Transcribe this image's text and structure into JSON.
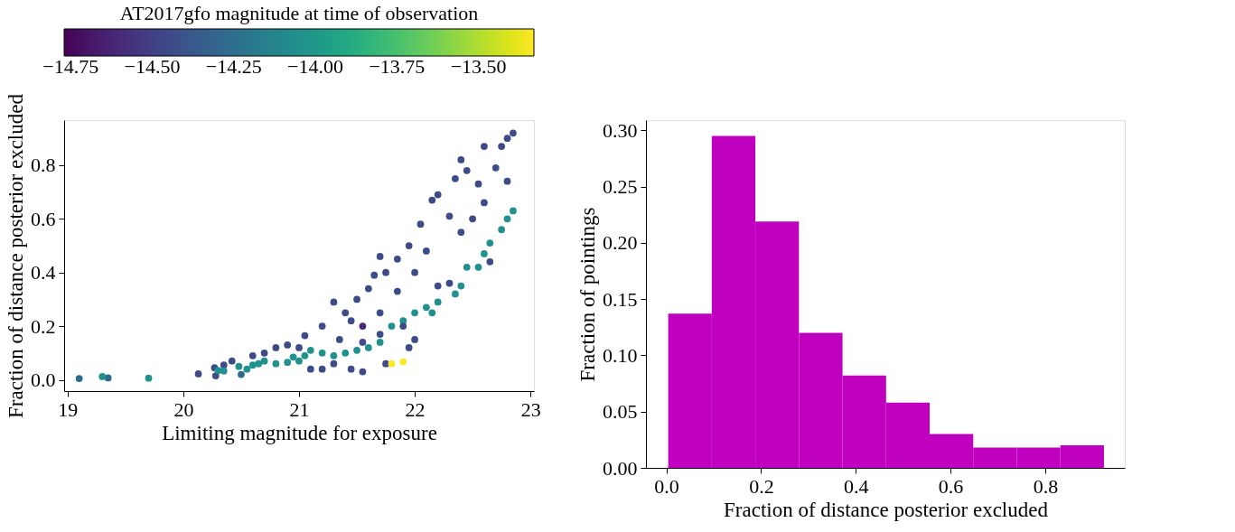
{
  "chart_data": [
    {
      "type": "scatter",
      "xlabel": "Limiting magnitude for exposure",
      "ylabel": "Fraction of distance posterior excluded",
      "clabel": "AT2017gfo magnitude at time of observation",
      "clim": [
        -14.77,
        -13.33
      ],
      "cticks": [
        {
          "value": -14.75,
          "label": "−14.75"
        },
        {
          "value": -14.5,
          "label": "−14.50"
        },
        {
          "value": -14.25,
          "label": "−14.25"
        },
        {
          "value": -14.0,
          "label": "−14.00"
        },
        {
          "value": -13.75,
          "label": "−13.75"
        },
        {
          "value": -13.5,
          "label": "−13.50"
        }
      ],
      "xlim": [
        18.97,
        23.03
      ],
      "ylim": [
        -0.042,
        0.968
      ],
      "xticks": [
        19,
        20,
        21,
        22,
        23
      ],
      "yticks": [
        {
          "value": 0,
          "label": "0.0"
        },
        {
          "value": 0.2,
          "label": "0.2"
        },
        {
          "value": 0.4,
          "label": "0.4"
        },
        {
          "value": 0.6,
          "label": "0.6"
        },
        {
          "value": 0.8,
          "label": "0.8"
        }
      ],
      "grid": false,
      "marker": "circle",
      "x": [
        19.1,
        19.35,
        19.3,
        19.7,
        20.13,
        20.28,
        20.27,
        20.35,
        20.42,
        20.3,
        20.35,
        20.5,
        20.48,
        20.55,
        20.6,
        20.65,
        20.7,
        20.8,
        20.9,
        20.6,
        20.7,
        20.8,
        20.9,
        21.0,
        21.05,
        20.95,
        21.0,
        21.05,
        21.1,
        21.2,
        21.3,
        21.4,
        21.5,
        21.6,
        21.7,
        21.8,
        21.9,
        22.0,
        22.1,
        22.15,
        22.2,
        22.35,
        22.4,
        22.45,
        22.55,
        22.6,
        22.65,
        22.75,
        22.8,
        22.85,
        21.1,
        21.2,
        21.3,
        21.45,
        21.55,
        21.75,
        21.8,
        21.9,
        21.3,
        21.4,
        21.5,
        21.55,
        21.6,
        21.65,
        21.7,
        21.75,
        21.85,
        21.95,
        22.05,
        22.1,
        22.15,
        22.2,
        22.3,
        22.35,
        22.4,
        22.45,
        22.5,
        22.55,
        22.6,
        22.7,
        22.75,
        22.8,
        22.85,
        22.8,
        22.65,
        22.3,
        22.0,
        21.95,
        21.9,
        21.2,
        21.35,
        21.45,
        21.7,
        21.85,
        22.0,
        22.2,
        22.4,
        22.6,
        21.55,
        21.7
      ],
      "values": [
        0.005,
        0.007,
        0.012,
        0.006,
        0.022,
        0.015,
        0.045,
        0.055,
        0.07,
        0.035,
        0.033,
        0.02,
        0.05,
        0.04,
        0.055,
        0.06,
        0.07,
        0.06,
        0.065,
        0.09,
        0.1,
        0.12,
        0.13,
        0.12,
        0.165,
        0.085,
        0.07,
        0.09,
        0.11,
        0.1,
        0.09,
        0.1,
        0.11,
        0.12,
        0.14,
        0.2,
        0.22,
        0.25,
        0.27,
        0.25,
        0.29,
        0.32,
        0.35,
        0.42,
        0.42,
        0.47,
        0.51,
        0.56,
        0.6,
        0.63,
        0.04,
        0.04,
        0.06,
        0.04,
        0.03,
        0.06,
        0.06,
        0.067,
        0.29,
        0.25,
        0.3,
        0.2,
        0.34,
        0.39,
        0.46,
        0.4,
        0.45,
        0.5,
        0.58,
        0.48,
        0.67,
        0.69,
        0.61,
        0.75,
        0.82,
        0.78,
        0.6,
        0.73,
        0.87,
        0.79,
        0.87,
        0.9,
        0.92,
        0.74,
        0.44,
        0.36,
        0.15,
        0.12,
        0.2,
        0.2,
        0.15,
        0.22,
        0.25,
        0.33,
        0.4,
        0.35,
        0.55,
        0.66,
        0.14,
        0.17
      ],
      "cvalues": [
        -14.27,
        -14.27,
        -14.05,
        -14.05,
        -14.45,
        -14.45,
        -14.45,
        -14.45,
        -14.45,
        -14.05,
        -14.05,
        -14.27,
        -14.05,
        -14.05,
        -14.05,
        -14.05,
        -14.05,
        -14.05,
        -14.05,
        -14.45,
        -14.45,
        -14.45,
        -14.45,
        -14.45,
        -14.45,
        -14.05,
        -14.05,
        -14.05,
        -14.05,
        -14.05,
        -14.05,
        -14.05,
        -14.05,
        -14.05,
        -14.05,
        -14.05,
        -14.05,
        -14.05,
        -14.05,
        -14.05,
        -14.05,
        -14.05,
        -14.05,
        -14.05,
        -14.05,
        -14.05,
        -14.05,
        -14.05,
        -14.05,
        -14.05,
        -14.45,
        -14.45,
        -14.45,
        -14.45,
        -14.45,
        -14.45,
        -13.33,
        -13.33,
        -14.45,
        -14.45,
        -14.45,
        -14.6,
        -14.45,
        -14.45,
        -14.45,
        -14.45,
        -14.45,
        -14.45,
        -14.45,
        -14.45,
        -14.45,
        -14.45,
        -14.45,
        -14.45,
        -14.45,
        -14.45,
        -14.45,
        -14.45,
        -14.45,
        -14.45,
        -14.45,
        -14.45,
        -14.45,
        -14.45,
        -14.45,
        -14.45,
        -14.45,
        -14.45,
        -14.45,
        -14.45,
        -14.45,
        -14.45,
        -14.45,
        -14.45,
        -14.45,
        -14.45,
        -14.45,
        -14.45,
        -14.45,
        -14.45
      ]
    },
    {
      "type": "histogram",
      "xlabel": "Fraction of distance posterior excluded",
      "ylabel": "Fraction of pointings",
      "color": "#bf00bf",
      "bins": [
        0.004,
        0.096,
        0.188,
        0.28,
        0.372,
        0.464,
        0.556,
        0.648,
        0.74,
        0.832,
        0.924
      ],
      "values": [
        0.137,
        0.295,
        0.219,
        0.12,
        0.082,
        0.058,
        0.03,
        0.018,
        0.018,
        0.02
      ],
      "xlim": [
        -0.043,
        0.968
      ],
      "ylim": [
        0,
        0.309
      ],
      "xticks": [
        {
          "value": 0,
          "label": "0.0"
        },
        {
          "value": 0.2,
          "label": "0.2"
        },
        {
          "value": 0.4,
          "label": "0.4"
        },
        {
          "value": 0.6,
          "label": "0.6"
        },
        {
          "value": 0.8,
          "label": "0.8"
        }
      ],
      "yticks": [
        {
          "value": 0,
          "label": "0.00"
        },
        {
          "value": 0.05,
          "label": "0.05"
        },
        {
          "value": 0.1,
          "label": "0.10"
        },
        {
          "value": 0.15,
          "label": "0.15"
        },
        {
          "value": 0.2,
          "label": "0.20"
        },
        {
          "value": 0.25,
          "label": "0.25"
        },
        {
          "value": 0.3,
          "label": "0.30"
        }
      ],
      "grid": false
    }
  ]
}
